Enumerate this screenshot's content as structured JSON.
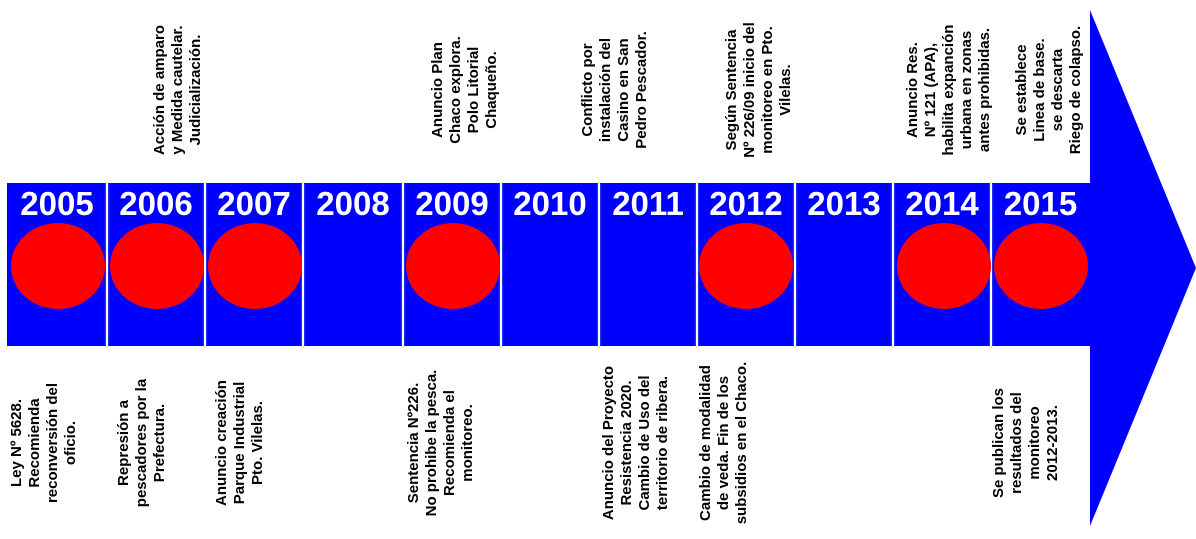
{
  "years": [
    {
      "label": "2005",
      "dot": true
    },
    {
      "label": "2006",
      "dot": true
    },
    {
      "label": "2007",
      "dot": true
    },
    {
      "label": "2008",
      "dot": false
    },
    {
      "label": "2009",
      "dot": true
    },
    {
      "label": "2010",
      "dot": false
    },
    {
      "label": "2011",
      "dot": false
    },
    {
      "label": "2012",
      "dot": true
    },
    {
      "label": "2013",
      "dot": false
    },
    {
      "label": "2014",
      "dot": true
    },
    {
      "label": "2015",
      "dot": true
    }
  ],
  "events_top": [
    {
      "year": "2006",
      "lines": [
        "Acción de amparo",
        "y Medida cautelar.",
        "Judicialización."
      ]
    },
    {
      "year": "2009",
      "lines": [
        "Anuncio Plan",
        "Chaco explora.",
        "Polo Litorial",
        "Chaqueño."
      ]
    },
    {
      "year": "2010-2011",
      "lines": [
        "Conflicto por",
        "instalación del",
        "Casino en San",
        "Pedro Pescador."
      ]
    },
    {
      "year": "2012",
      "lines": [
        "Según Sentencia",
        "Nº 226/09 inicio del",
        "monitoreo en Pto.",
        "Vilelas."
      ]
    },
    {
      "year": "2014",
      "lines": [
        "Anuncio Res.",
        "Nº 121 (APA),",
        "habilita expanción",
        "urbana en zonas",
        "antes prohibidas."
      ]
    },
    {
      "year": "2015",
      "lines": [
        "Se establece",
        "Linea de base.",
        "se descarta",
        "Riego de colapso."
      ]
    }
  ],
  "events_bottom": [
    {
      "year": "2005",
      "lines": [
        "Ley Nº 5628.",
        "Recomienda",
        "reconversión del",
        "oficio."
      ]
    },
    {
      "year": "2006",
      "lines": [
        "Represión a",
        "pescadores por la",
        "Prefectura."
      ]
    },
    {
      "year": "2007",
      "lines": [
        "Anuncio creación",
        "Parque Industrial",
        "Pto. Vilelas."
      ]
    },
    {
      "year": "2009",
      "lines": [
        "Sentencia Nº226.",
        "No prohibe la pesca.",
        "Recomienda el",
        "monitoreo."
      ]
    },
    {
      "year": "2011",
      "lines": [
        "Anuncio del Proyecto",
        "Resistencia 2020.",
        "Cambio de Uso del",
        "territorio de ribera."
      ]
    },
    {
      "year": "2012",
      "lines": [
        "Cambio de modalidad",
        "de veda. Fin de los",
        "subsidios en el Chaco."
      ]
    },
    {
      "year": "2015",
      "lines": [
        "Se publican los",
        "resultados del",
        "monitoreo",
        "2012-2013."
      ]
    }
  ],
  "colors": {
    "band": "#0000ff",
    "dot": "#ff0000",
    "year_text": "#ffffff",
    "note_text": "#000000"
  }
}
